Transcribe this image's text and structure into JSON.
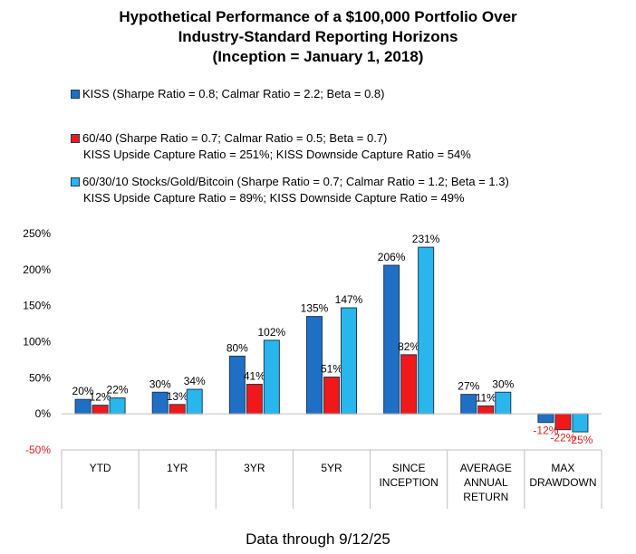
{
  "title_lines": [
    "Hypothetical Performance of a $100,000 Portfolio Over",
    "Industry-Standard Reporting Horizons",
    "(Inception = January 1, 2018)"
  ],
  "legend": [
    {
      "line1": "KISS (Sharpe Ratio = 0.8; Calmar Ratio = 2.2; Beta = 0.8)",
      "line2": "",
      "color": "#1f6fc5"
    },
    {
      "line1": "60/40 (Sharpe Ratio = 0.7; Calmar Ratio = 0.5; Beta = 0.7)",
      "line2": "KISS Upside Capture Ratio = 251%; KISS Downside Capture Ratio = 54%",
      "color": "#f01818"
    },
    {
      "line1": "60/30/10 Stocks/Gold/Bitcoin (Sharpe Ratio = 0.7; Calmar Ratio = 1.2; Beta = 1.3)",
      "line2": "KISS Upside Capture Ratio = 89%; KISS Downside Capture Ratio = 49%",
      "color": "#29b6ec"
    }
  ],
  "footer": "Data through  9/12/25",
  "chart_data": {
    "type": "bar",
    "categories": [
      [
        "YTD"
      ],
      [
        "1YR"
      ],
      [
        "3YR"
      ],
      [
        "5YR"
      ],
      [
        "SINCE",
        "INCEPTION"
      ],
      [
        "AVERAGE",
        "ANNUAL",
        "RETURN"
      ],
      [
        "MAX",
        "DRAWDOWN"
      ]
    ],
    "series": [
      {
        "name": "KISS",
        "color": "#1f6fc5",
        "values": [
          20,
          30,
          80,
          135,
          206,
          27,
          -12
        ]
      },
      {
        "name": "60/40",
        "color": "#f01818",
        "values": [
          12,
          13,
          41,
          51,
          82,
          11,
          -22
        ]
      },
      {
        "name": "60/30/10 Stocks/Gold/Bitcoin",
        "color": "#29b6ec",
        "values": [
          22,
          34,
          102,
          147,
          231,
          30,
          -25
        ]
      }
    ],
    "data_labels": [
      [
        "20%",
        "30%",
        "80%",
        "135%",
        "206%",
        "27%",
        "-12%"
      ],
      [
        "12%",
        "13%",
        "41%",
        "51%",
        "82%",
        "11%",
        "-22%"
      ],
      [
        "22%",
        "34%",
        "102%",
        "147%",
        "231%",
        "30%",
        "-25%"
      ]
    ],
    "negative_label_color": "#e02020",
    "yticks": [
      250,
      200,
      150,
      100,
      50,
      0,
      -50
    ],
    "ytick_labels": [
      "250%",
      "200%",
      "150%",
      "100%",
      "50%",
      "0%",
      "-50%"
    ],
    "negative_tick_color": "#e02020",
    "ylim": [
      -50,
      250
    ],
    "grid": false,
    "legend_position": "top"
  }
}
